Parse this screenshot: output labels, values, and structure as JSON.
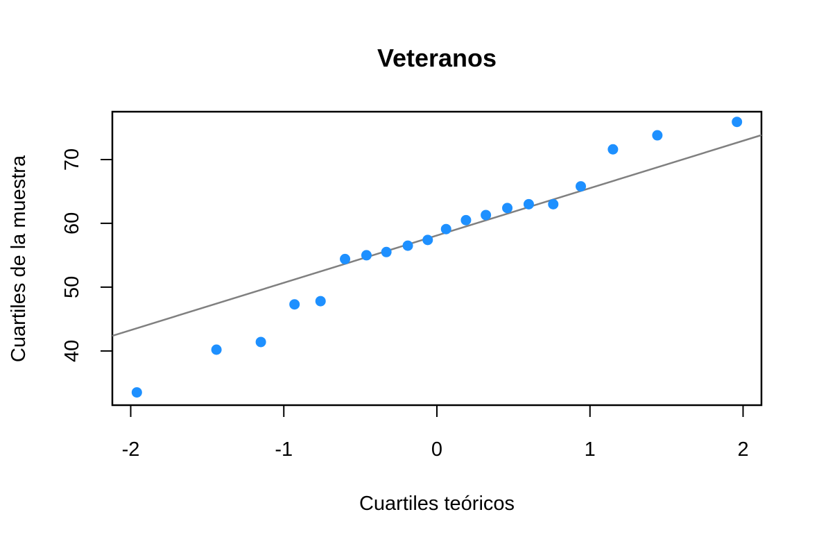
{
  "chart_data": {
    "type": "scatter",
    "title": "Veteranos",
    "xlabel": "Cuartiles teóricos",
    "ylabel": "Cuartiles de la muestra",
    "xlim": [
      -2.12,
      2.12
    ],
    "ylim": [
      31.5,
      77.5
    ],
    "x_ticks": [
      -2,
      -1,
      0,
      1,
      2
    ],
    "x_tick_labels": [
      "-2",
      "-1",
      "0",
      "1",
      "2"
    ],
    "y_ticks": [
      40,
      50,
      60,
      70
    ],
    "y_tick_labels": [
      "40",
      "50",
      "60",
      "70"
    ],
    "grid": false,
    "legend": "none",
    "point_color": "#1E90FF",
    "line_color": "#808080",
    "series": [
      {
        "x": [
          -1.96,
          -1.44,
          -1.15,
          -0.93,
          -0.76,
          -0.6,
          -0.46,
          -0.33,
          -0.19,
          -0.06,
          0.06,
          0.19,
          0.32,
          0.46,
          0.6,
          0.76,
          0.94,
          1.15,
          1.44,
          1.96
        ],
        "y": [
          33.5,
          40.2,
          41.4,
          47.3,
          47.8,
          54.4,
          55.0,
          55.5,
          56.5,
          57.4,
          59.1,
          60.5,
          61.3,
          62.4,
          63.0,
          63.0,
          65.8,
          71.6,
          73.8,
          75.9
        ]
      }
    ],
    "reference_line": {
      "slope": 7.42,
      "intercept": 58.1
    }
  }
}
